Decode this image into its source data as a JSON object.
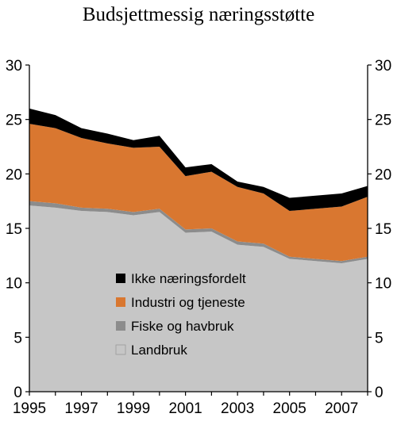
{
  "chart_data": {
    "type": "area",
    "stacked": true,
    "title": "Budsjettmessig næringsstøtte",
    "xlabel": "",
    "ylabel": "",
    "x": [
      1995,
      1996,
      1997,
      1998,
      1999,
      2000,
      2001,
      2002,
      2003,
      2004,
      2005,
      2006,
      2007,
      2008
    ],
    "x_tick_labels": [
      "1995",
      "1997",
      "1999",
      "2001",
      "2003",
      "2005",
      "2007"
    ],
    "x_tick_values": [
      1995,
      1997,
      1999,
      2001,
      2003,
      2005,
      2007
    ],
    "ylim": [
      0,
      30
    ],
    "y_ticks": [
      0,
      5,
      10,
      15,
      20,
      25,
      30
    ],
    "grid": false,
    "legend_position": "center-left",
    "series": [
      {
        "name": "Landbruk",
        "color": "#c6c6c6",
        "values": [
          17.1,
          16.9,
          16.6,
          16.5,
          16.2,
          16.5,
          14.6,
          14.7,
          13.5,
          13.3,
          12.2,
          12.0,
          11.8,
          12.2
        ]
      },
      {
        "name": "Fiske og havbruk",
        "color": "#8c8c8c",
        "values": [
          0.4,
          0.4,
          0.3,
          0.3,
          0.3,
          0.3,
          0.3,
          0.3,
          0.3,
          0.3,
          0.2,
          0.2,
          0.2,
          0.2
        ]
      },
      {
        "name": "Industri og tjeneste",
        "color": "#d97730",
        "values": [
          7.1,
          6.9,
          6.4,
          6.0,
          5.9,
          5.7,
          4.9,
          5.2,
          5.0,
          4.6,
          4.2,
          4.6,
          5.0,
          5.5
        ]
      },
      {
        "name": "Ikke næringsfordelt",
        "color": "#000000",
        "values": [
          1.4,
          1.2,
          0.9,
          0.9,
          0.7,
          1.0,
          0.8,
          0.7,
          0.5,
          0.6,
          1.2,
          1.2,
          1.2,
          1.0
        ]
      }
    ],
    "legend_order": [
      "Ikke næringsfordelt",
      "Industri og tjeneste",
      "Fiske og havbruk",
      "Landbruk"
    ]
  }
}
